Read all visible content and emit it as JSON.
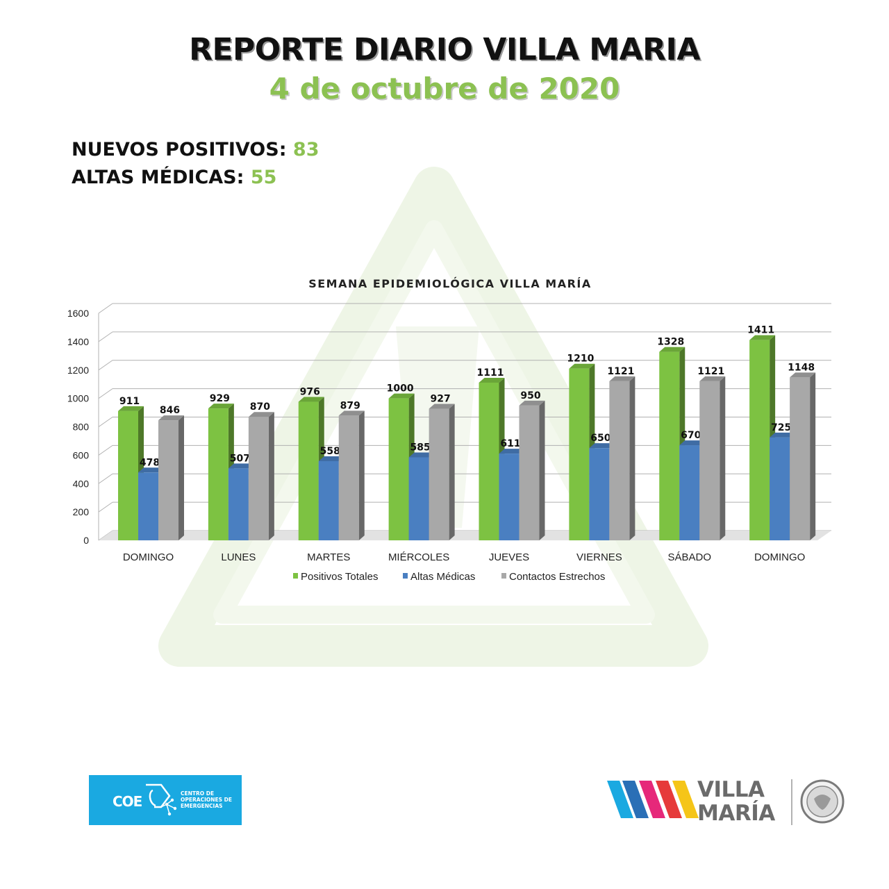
{
  "header": {
    "title": "REPORTE DIARIO VILLA MARIA",
    "date": "4  de octubre de 2020"
  },
  "stats": {
    "positives_label": "NUEVOS POSITIVOS:",
    "positives_value": "83",
    "discharges_label": "ALTAS MÉDICAS:",
    "discharges_value": "55"
  },
  "chart_data": {
    "type": "bar",
    "title": "SEMANA EPIDEMIOLÓGICA VILLA MARÍA",
    "xlabel": "",
    "ylabel": "",
    "ylim": [
      0,
      1600
    ],
    "yticks": [
      0,
      200,
      400,
      600,
      800,
      1000,
      1200,
      1400,
      1600
    ],
    "grid": true,
    "legend_position": "bottom",
    "categories": [
      "DOMINGO",
      "LUNES",
      "MARTES",
      "MIÉRCOLES",
      "JUEVES",
      "VIERNES",
      "SÁBADO",
      "DOMINGO"
    ],
    "series": [
      {
        "name": "Positivos Totales",
        "color": "#7dc242",
        "values": [
          911,
          929,
          976,
          1000,
          1111,
          1210,
          1328,
          1411
        ]
      },
      {
        "name": "Altas Médicas",
        "color": "#4a7fc1",
        "values": [
          478,
          507,
          558,
          585,
          611,
          650,
          670,
          725
        ]
      },
      {
        "name": "Contactos Estrechos",
        "color": "#a8a8a8",
        "values": [
          846,
          870,
          879,
          927,
          950,
          1121,
          1121,
          1148
        ]
      }
    ]
  },
  "logos": {
    "coe_abbrev": "COE",
    "coe_name": "CENTRO DE OPERACIONES DE EMERGENCIAS",
    "city_line1": "VILLA",
    "city_line2": "MARÍA"
  },
  "colors": {
    "accent_green": "#8cc152",
    "coe_blue": "#1aa9e1"
  }
}
